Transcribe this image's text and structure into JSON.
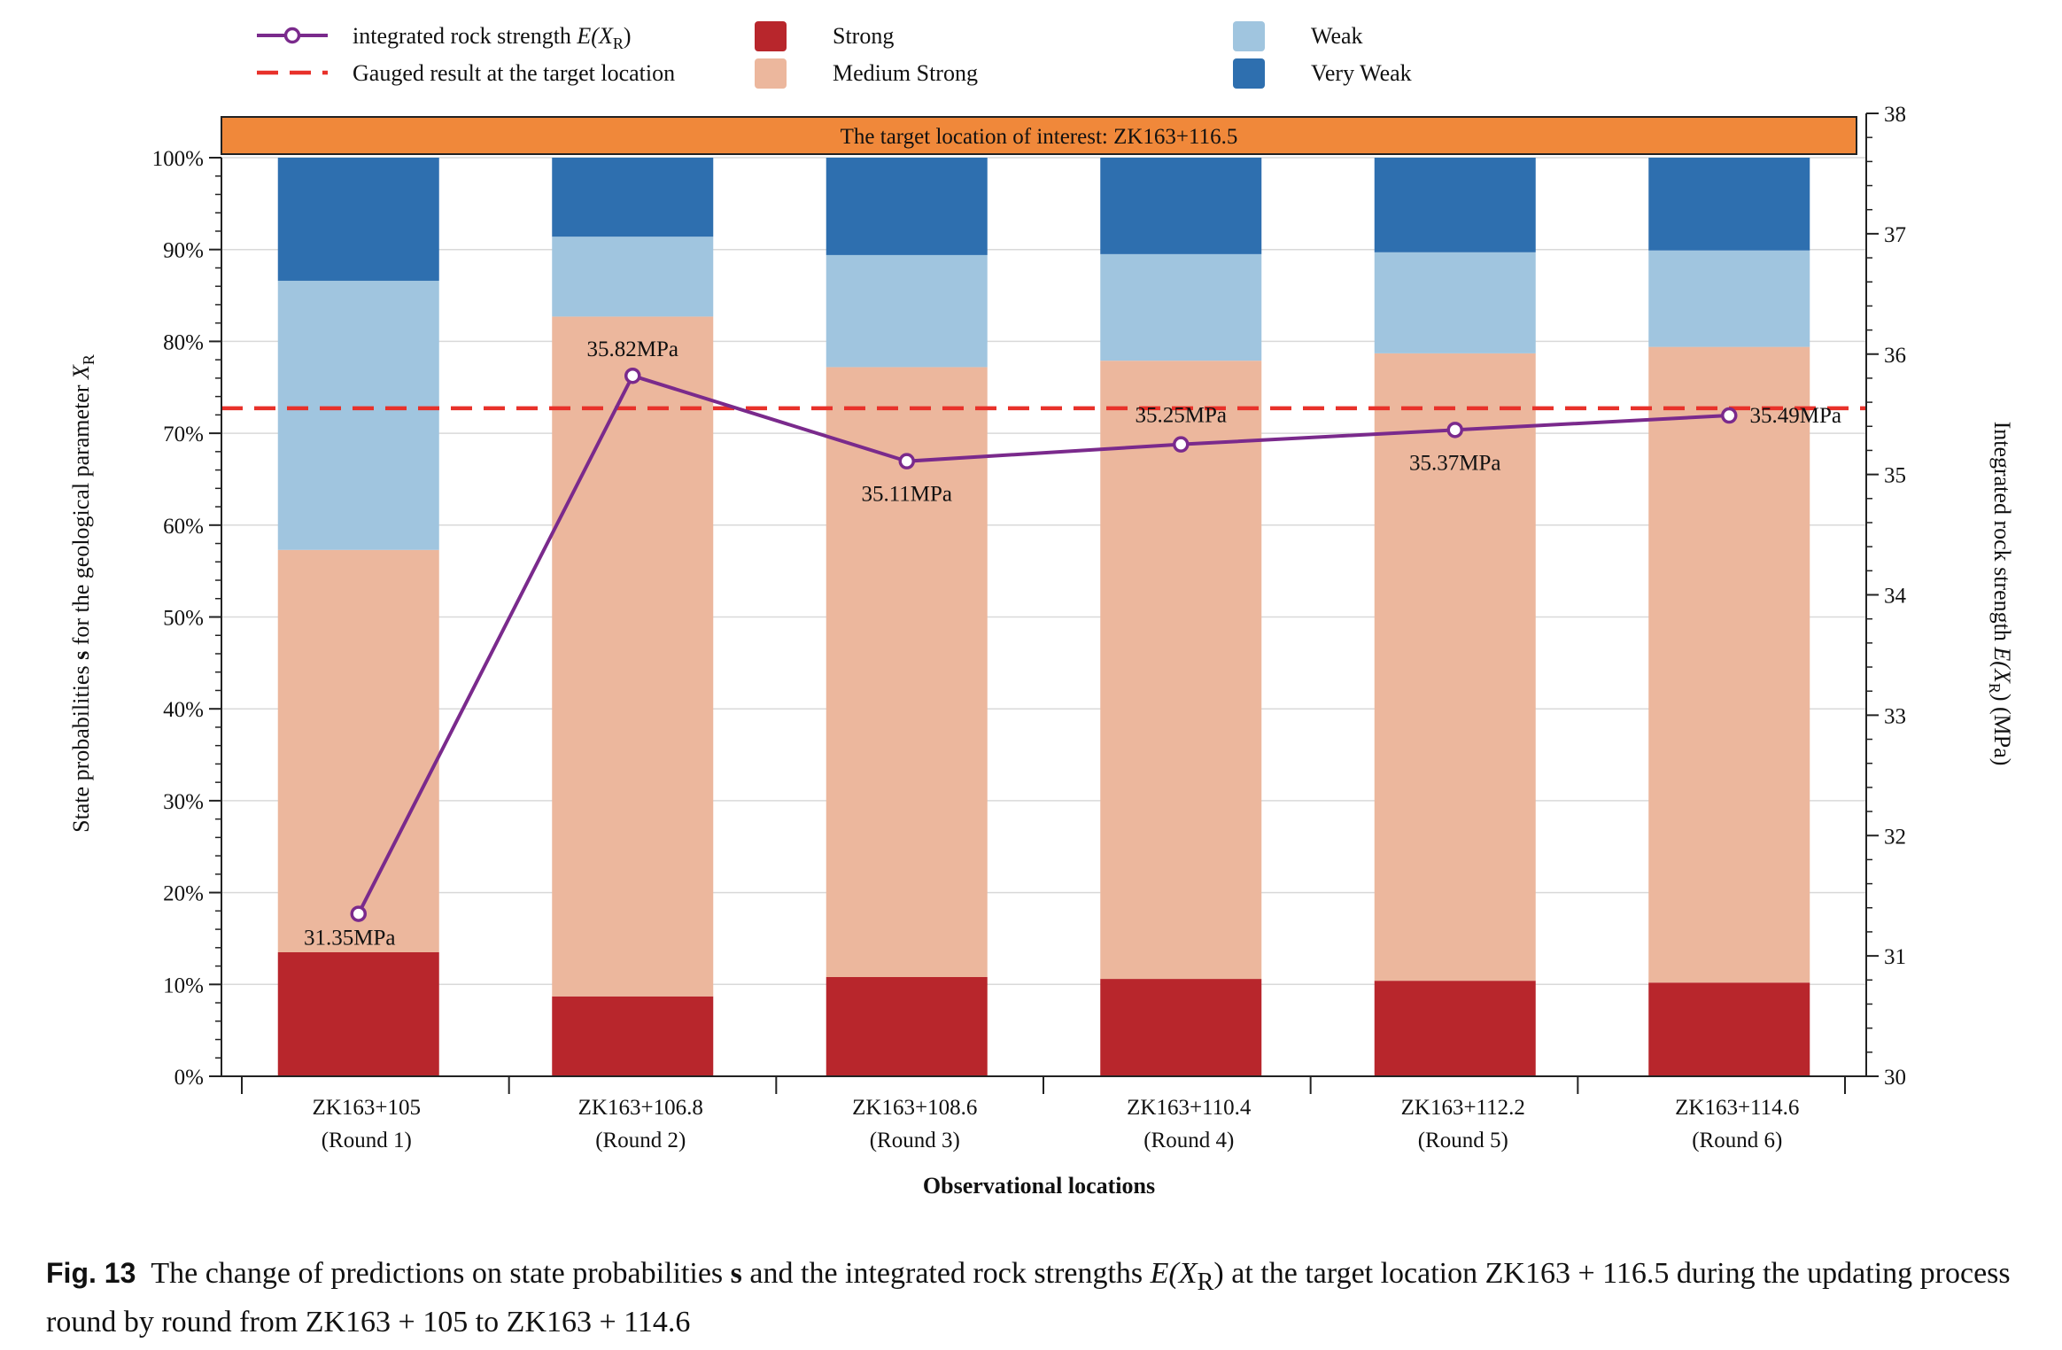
{
  "chart_data": {
    "type": "bar",
    "subtype": "stacked-bar-with-line-secondary-axis",
    "categories": [
      "ZK163+105",
      "ZK163+106.8",
      "ZK163+108.6",
      "ZK163+110.4",
      "ZK163+112.2",
      "ZK163+114.6"
    ],
    "category_sublabels": [
      "(Round 1)",
      "(Round 2)",
      "(Round 3)",
      "(Round 4)",
      "(Round 5)",
      "(Round 6)"
    ],
    "series": [
      {
        "name": "Strong",
        "color": "#b8262c",
        "values": [
          13.5,
          8.7,
          10.8,
          10.6,
          10.4,
          10.2
        ]
      },
      {
        "name": "Medium Strong",
        "color": "#ecb79d",
        "values": [
          43.8,
          74.0,
          66.4,
          67.3,
          68.3,
          69.2
        ]
      },
      {
        "name": "Weak",
        "color": "#a0c5df",
        "values": [
          29.3,
          8.7,
          12.2,
          11.6,
          11.0,
          10.5
        ]
      },
      {
        "name": "Very Weak",
        "color": "#2e6faf",
        "values": [
          13.4,
          8.6,
          10.6,
          10.5,
          10.3,
          10.1
        ]
      }
    ],
    "line_series": {
      "name_prefix": "integrated rock strength ",
      "name_math": "E(X",
      "name_sub": "R",
      "name_close": ")",
      "color": "#7a2a8c",
      "values": [
        31.35,
        35.82,
        35.11,
        35.25,
        35.37,
        35.49
      ],
      "labels": [
        "31.35MPa",
        "35.82MPa",
        "35.11MPa",
        "35.25MPa",
        "35.37MPa",
        "35.49MPa"
      ]
    },
    "reference_line": {
      "name": "Gauged result at the target location",
      "color": "#e8312a",
      "value": 35.55
    },
    "banner": {
      "text": "The target location of interest: ZK163+116.5",
      "color": "#f0883a"
    },
    "xlabel": "Observational locations",
    "ylabel_left_prefix": "State probabilities ",
    "ylabel_left_bold": "s",
    "ylabel_left_mid": " for the geological parameter ",
    "ylabel_left_math": "X",
    "ylabel_left_sub": "R",
    "ylabel_right_prefix": "Integrated rock strength ",
    "ylabel_right_math": "E(X",
    "ylabel_right_sub": "R",
    "ylabel_right_suffix": ") (MPa)",
    "ylim_left": [
      0,
      100
    ],
    "yticks_left": [
      "0%",
      "10%",
      "20%",
      "30%",
      "40%",
      "50%",
      "60%",
      "70%",
      "80%",
      "90%",
      "100%"
    ],
    "ylim_right": [
      30,
      38
    ],
    "yticks_right": [
      "30",
      "31",
      "32",
      "33",
      "34",
      "35",
      "36",
      "37",
      "38"
    ],
    "grid": true,
    "legend_position": "top"
  },
  "caption": {
    "label": "Fig. 13",
    "text_1": "The change of predictions on state probabilities ",
    "bold_s": "s",
    "text_2": " and the integrated rock strengths ",
    "math": "E(X",
    "sub": "R",
    "math_close": ")",
    "text_3": " at the target location ZK163 + 116.5 during the updating process round by round from ZK163 + 105 to ZK163 + 114.6"
  }
}
